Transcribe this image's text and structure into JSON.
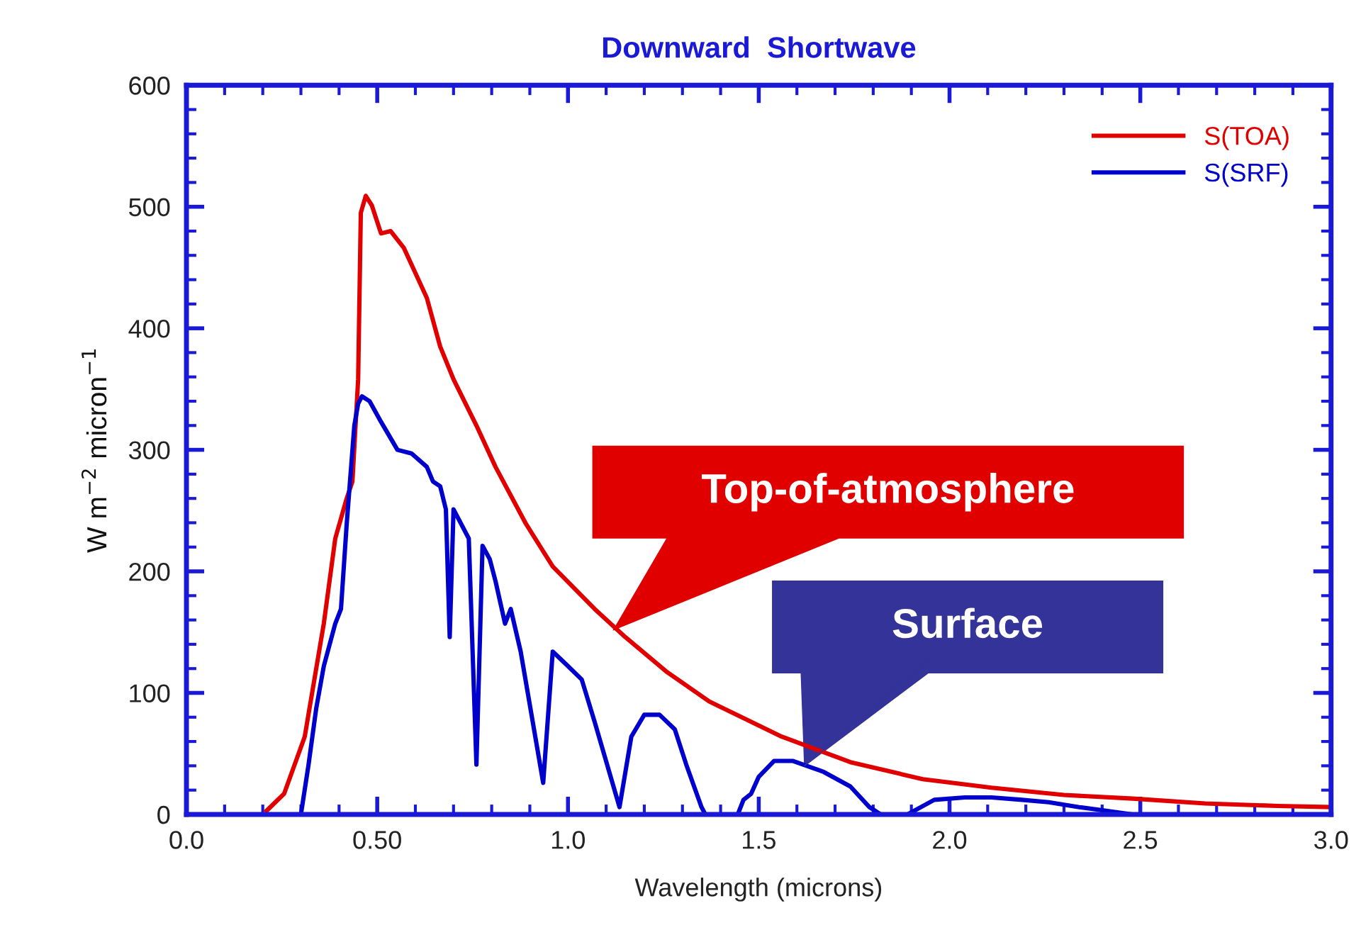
{
  "chart_data": {
    "type": "line",
    "title": "Downward  Shortwave",
    "xlabel": "Wavelength (microns)",
    "ylabel": "W m$^{−2}$ micron$^{−1}$",
    "xlim": [
      0,
      3
    ],
    "ylim": [
      0,
      600
    ],
    "xticks": [
      {
        "value": 0,
        "label": "0.0"
      },
      {
        "value": 0.5,
        "label": "0.50"
      },
      {
        "value": 1,
        "label": "1.0"
      },
      {
        "value": 1.5,
        "label": "1.5"
      },
      {
        "value": 2,
        "label": "2.0"
      },
      {
        "value": 2.5,
        "label": "2.5"
      },
      {
        "value": 3,
        "label": "3.0"
      }
    ],
    "yticks": [
      0,
      100,
      200,
      300,
      400,
      500,
      600
    ],
    "grid": false,
    "legend": "top right",
    "marker": "none",
    "line_style": "solid",
    "series": [
      {
        "name": "S(TOA)",
        "color": "#e00000",
        "x": [
          0.21,
          0.256,
          0.31,
          0.36,
          0.39,
          0.42,
          0.435,
          0.45,
          0.457,
          0.47,
          0.486,
          0.51,
          0.535,
          0.57,
          0.63,
          0.665,
          0.7,
          0.76,
          0.81,
          0.89,
          0.96,
          1.07,
          1.15,
          1.26,
          1.37,
          1.56,
          1.74,
          1.93,
          2.11,
          2.3,
          2.48,
          2.67,
          2.86,
          3.0
        ],
        "values": [
          3,
          17,
          64,
          157,
          227,
          260,
          274,
          358,
          495,
          509,
          501,
          478,
          480,
          466,
          425,
          385,
          358,
          320,
          286,
          239,
          204,
          169,
          146,
          117,
          93,
          64,
          43,
          29,
          22,
          16,
          13,
          9,
          7,
          6
        ]
      },
      {
        "name": "S(SRF)",
        "color": "#0000cc",
        "x": [
          0.3,
          0.32,
          0.34,
          0.36,
          0.39,
          0.405,
          0.42,
          0.44,
          0.45,
          0.46,
          0.48,
          0.51,
          0.553,
          0.59,
          0.63,
          0.646,
          0.665,
          0.68,
          0.69,
          0.7,
          0.74,
          0.76,
          0.776,
          0.795,
          0.81,
          0.835,
          0.85,
          0.876,
          0.935,
          0.96,
          1.0,
          1.036,
          1.07,
          1.135,
          1.166,
          1.2,
          1.24,
          1.28,
          1.31,
          1.35,
          1.36,
          1.445,
          1.46,
          1.48,
          1.5,
          1.54,
          1.59,
          1.67,
          1.74,
          1.79,
          1.82,
          1.89,
          1.96,
          2.04,
          2.11,
          2.19,
          2.26,
          2.34,
          2.41,
          2.48,
          3.0
        ],
        "values": [
          0,
          41,
          87,
          122,
          157,
          169,
          239,
          320,
          338,
          344,
          340,
          323,
          300,
          297,
          286,
          274,
          270,
          251,
          146,
          251,
          227,
          41,
          221,
          210,
          192,
          157,
          169,
          134,
          26,
          134,
          122,
          111,
          76,
          6,
          64,
          82,
          82,
          70,
          41,
          6,
          0,
          0,
          12,
          17,
          31,
          44,
          44,
          35,
          23,
          6,
          0,
          0,
          12,
          14,
          14,
          12,
          10,
          6,
          3,
          0,
          0
        ]
      }
    ],
    "annotations": [
      {
        "text": "Top-of-atmosphere",
        "x": 1.12,
        "y": 152
      },
      {
        "text": "Surface",
        "x": 1.62,
        "y": 40
      }
    ]
  }
}
